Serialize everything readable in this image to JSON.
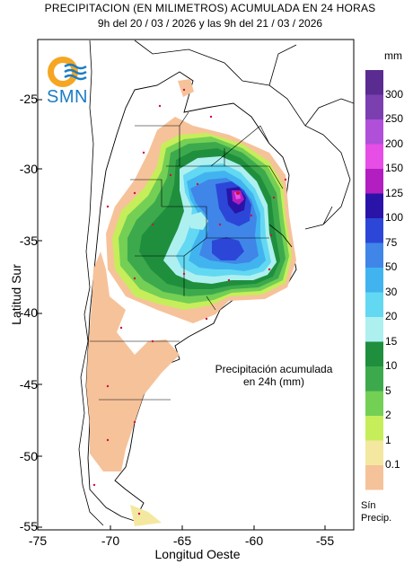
{
  "header": {
    "title": "PRECIPITACION (EN MILIMETROS) ACUMULADA EN 24 HORAS",
    "subtitle": "9h del 20 / 03 / 2026  y las 9h del 21 / 03 / 2026"
  },
  "logo": {
    "text": "SMN",
    "icon": "smn-sun-waves-logo"
  },
  "axes": {
    "xlabel": "Longitud Oeste",
    "ylabel": "Latitud Sur",
    "xticks": [
      "-75",
      "-70",
      "-65",
      "-60",
      "-55"
    ],
    "yticks": [
      "-25",
      "-30",
      "-35",
      "-40",
      "-45",
      "-50",
      "-55"
    ],
    "xlim": [
      -75,
      -53
    ],
    "ylim": [
      -55,
      -20
    ]
  },
  "annotation": {
    "line1": "Precipitación acumulada",
    "line2": "en 24h (mm)"
  },
  "legend": {
    "unit": "mm",
    "no_data_line1": "Sín",
    "no_data_line2": "Precip.",
    "levels": [
      {
        "label": "300",
        "color": "#5a2c91"
      },
      {
        "label": "250",
        "color": "#7b3fb0"
      },
      {
        "label": "200",
        "color": "#b04fd8"
      },
      {
        "label": "150",
        "color": "#e64ee6"
      },
      {
        "label": "125",
        "color": "#b21ec0"
      },
      {
        "label": "100",
        "color": "#2a14a8"
      },
      {
        "label": "75",
        "color": "#2c47d8"
      },
      {
        "label": "50",
        "color": "#3f86e8"
      },
      {
        "label": "30",
        "color": "#41b4f0"
      },
      {
        "label": "20",
        "color": "#63d8f2"
      },
      {
        "label": "15",
        "color": "#aef0f0"
      },
      {
        "label": "10",
        "color": "#1f8f3d"
      },
      {
        "label": "5",
        "color": "#3caa4c"
      },
      {
        "label": "2",
        "color": "#74cf55"
      },
      {
        "label": "1",
        "color": "#c6ee5a"
      },
      {
        "label": "0.1",
        "color": "#f4e8a0"
      },
      {
        "label": "",
        "color": "#f6c29a"
      }
    ]
  }
}
